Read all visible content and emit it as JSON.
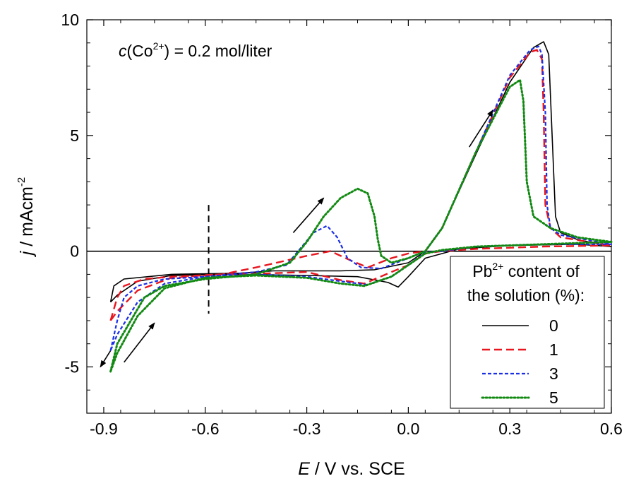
{
  "chart_data": {
    "type": "line",
    "title": "",
    "annotation": {
      "italic": "c",
      "prefix": "(Co",
      "superscript": "2+",
      "suffix": ") = 0.2 mol/liter"
    },
    "xlabel": {
      "italic": "E",
      "rest": " / V vs. SCE"
    },
    "ylabel": {
      "italic": "j",
      "rest": " / mAcm",
      "superscript": "-2"
    },
    "xlim": [
      -0.95,
      0.6
    ],
    "ylim": [
      -7,
      10
    ],
    "xticks": [
      -0.9,
      -0.6,
      -0.3,
      0.0,
      0.3,
      0.6
    ],
    "xtick_labels": [
      "-0.9",
      "-0.6",
      "-0.3",
      "0.0",
      "0.3",
      "0.6"
    ],
    "yticks": [
      -5,
      0,
      5,
      10
    ],
    "ytick_labels": [
      "-5",
      "0",
      "5",
      "10"
    ],
    "zero_line": true,
    "vertical_marker_x": -0.59,
    "legend": {
      "position": "bottom-right",
      "title_line1_prefix": "Pb",
      "title_line1_superscript": "2+",
      "title_line1_suffix": " content of",
      "title_line2": "the solution (%):"
    },
    "arrows": [
      {
        "from": [
          -0.88,
          -4.3
        ],
        "to": [
          -0.91,
          -5.0
        ]
      },
      {
        "from": [
          -0.84,
          -4.8
        ],
        "to": [
          -0.75,
          -3.1
        ]
      },
      {
        "from": [
          -0.34,
          0.8
        ],
        "to": [
          -0.25,
          2.3
        ]
      },
      {
        "from": [
          0.18,
          4.5
        ],
        "to": [
          0.25,
          6.1
        ]
      }
    ],
    "series": [
      {
        "name": "0",
        "color": "#000000",
        "dash": "solid",
        "points": [
          [
            -0.88,
            -2.2
          ],
          [
            -0.87,
            -1.5
          ],
          [
            -0.84,
            -1.2
          ],
          [
            -0.7,
            -1.0
          ],
          [
            -0.5,
            -0.95
          ],
          [
            -0.4,
            -0.85
          ],
          [
            -0.3,
            -0.85
          ],
          [
            -0.2,
            -0.85
          ],
          [
            -0.1,
            -0.8
          ],
          [
            0.0,
            -0.5
          ],
          [
            0.05,
            0.0
          ],
          [
            0.1,
            1.0
          ],
          [
            0.2,
            4.2
          ],
          [
            0.3,
            7.3
          ],
          [
            0.37,
            8.8
          ],
          [
            0.4,
            9.05
          ],
          [
            0.415,
            8.5
          ],
          [
            0.425,
            5.0
          ],
          [
            0.435,
            1.5
          ],
          [
            0.45,
            0.8
          ],
          [
            0.5,
            0.5
          ],
          [
            0.6,
            0.2
          ],
          [
            0.5,
            0.3
          ],
          [
            0.3,
            0.25
          ],
          [
            0.15,
            0.1
          ],
          [
            0.05,
            -0.3
          ],
          [
            0.0,
            -1.1
          ],
          [
            -0.03,
            -1.55
          ],
          [
            -0.06,
            -1.35
          ],
          [
            -0.15,
            -1.1
          ],
          [
            -0.3,
            -1.05
          ],
          [
            -0.5,
            -1.0
          ],
          [
            -0.7,
            -1.05
          ],
          [
            -0.8,
            -1.3
          ],
          [
            -0.86,
            -1.9
          ],
          [
            -0.88,
            -2.2
          ]
        ]
      },
      {
        "name": "1",
        "color": "#e8161f",
        "dash": "long-dash",
        "points": [
          [
            -0.88,
            -3.0
          ],
          [
            -0.86,
            -2.0
          ],
          [
            -0.84,
            -1.5
          ],
          [
            -0.78,
            -1.2
          ],
          [
            -0.7,
            -1.1
          ],
          [
            -0.55,
            -1.0
          ],
          [
            -0.45,
            -0.7
          ],
          [
            -0.3,
            -0.2
          ],
          [
            -0.23,
            0.0
          ],
          [
            -0.17,
            -0.4
          ],
          [
            -0.12,
            -0.7
          ],
          [
            -0.05,
            -0.3
          ],
          [
            0.0,
            -0.1
          ],
          [
            0.05,
            0.0
          ],
          [
            0.1,
            1.0
          ],
          [
            0.2,
            4.3
          ],
          [
            0.3,
            7.5
          ],
          [
            0.36,
            8.6
          ],
          [
            0.38,
            8.7
          ],
          [
            0.395,
            8.3
          ],
          [
            0.4,
            6.0
          ],
          [
            0.405,
            2.0
          ],
          [
            0.42,
            1.0
          ],
          [
            0.45,
            0.6
          ],
          [
            0.6,
            0.25
          ],
          [
            0.4,
            0.2
          ],
          [
            0.2,
            0.1
          ],
          [
            0.1,
            0.0
          ],
          [
            0.05,
            -0.1
          ],
          [
            0.0,
            -0.6
          ],
          [
            -0.05,
            -0.9
          ],
          [
            -0.13,
            -1.4
          ],
          [
            -0.2,
            -1.25
          ],
          [
            -0.3,
            -0.9
          ],
          [
            -0.4,
            -0.95
          ],
          [
            -0.55,
            -1.0
          ],
          [
            -0.7,
            -1.15
          ],
          [
            -0.8,
            -1.7
          ],
          [
            -0.86,
            -2.6
          ],
          [
            -0.88,
            -3.0
          ]
        ]
      },
      {
        "name": "3",
        "color": "#1a2ee6",
        "dash": "short-dash",
        "points": [
          [
            -0.88,
            -4.3
          ],
          [
            -0.86,
            -3.0
          ],
          [
            -0.84,
            -2.0
          ],
          [
            -0.8,
            -1.5
          ],
          [
            -0.72,
            -1.2
          ],
          [
            -0.6,
            -1.1
          ],
          [
            -0.45,
            -0.9
          ],
          [
            -0.36,
            -0.6
          ],
          [
            -0.32,
            0.1
          ],
          [
            -0.28,
            0.8
          ],
          [
            -0.24,
            1.1
          ],
          [
            -0.21,
            0.6
          ],
          [
            -0.18,
            -0.3
          ],
          [
            -0.14,
            -0.7
          ],
          [
            -0.08,
            -0.75
          ],
          [
            0.0,
            -0.3
          ],
          [
            0.05,
            0.0
          ],
          [
            0.1,
            1.0
          ],
          [
            0.2,
            4.3
          ],
          [
            0.3,
            7.6
          ],
          [
            0.36,
            8.7
          ],
          [
            0.385,
            8.85
          ],
          [
            0.395,
            8.5
          ],
          [
            0.405,
            6.0
          ],
          [
            0.41,
            2.0
          ],
          [
            0.42,
            1.0
          ],
          [
            0.45,
            0.7
          ],
          [
            0.6,
            0.3
          ],
          [
            0.4,
            0.3
          ],
          [
            0.2,
            0.2
          ],
          [
            0.1,
            0.0
          ],
          [
            0.05,
            -0.05
          ],
          [
            0.0,
            -0.6
          ],
          [
            -0.05,
            -1.1
          ],
          [
            -0.12,
            -1.45
          ],
          [
            -0.2,
            -1.3
          ],
          [
            -0.3,
            -1.1
          ],
          [
            -0.45,
            -1.0
          ],
          [
            -0.6,
            -1.1
          ],
          [
            -0.72,
            -1.4
          ],
          [
            -0.8,
            -2.2
          ],
          [
            -0.86,
            -3.6
          ],
          [
            -0.88,
            -4.3
          ]
        ]
      },
      {
        "name": "5",
        "color": "#128a12",
        "dash": "dotted",
        "points": [
          [
            -0.88,
            -5.2
          ],
          [
            -0.86,
            -4.0
          ],
          [
            -0.82,
            -3.0
          ],
          [
            -0.78,
            -2.0
          ],
          [
            -0.72,
            -1.5
          ],
          [
            -0.6,
            -1.2
          ],
          [
            -0.45,
            -1.0
          ],
          [
            -0.35,
            -0.5
          ],
          [
            -0.3,
            0.4
          ],
          [
            -0.25,
            1.5
          ],
          [
            -0.2,
            2.3
          ],
          [
            -0.15,
            2.7
          ],
          [
            -0.12,
            2.5
          ],
          [
            -0.1,
            1.5
          ],
          [
            -0.09,
            0.5
          ],
          [
            -0.08,
            -0.2
          ],
          [
            -0.05,
            -0.5
          ],
          [
            0.0,
            -0.3
          ],
          [
            0.05,
            0.0
          ],
          [
            0.1,
            1.0
          ],
          [
            0.2,
            4.3
          ],
          [
            0.3,
            7.1
          ],
          [
            0.33,
            7.4
          ],
          [
            0.34,
            6.5
          ],
          [
            0.35,
            3.0
          ],
          [
            0.37,
            1.5
          ],
          [
            0.42,
            1.0
          ],
          [
            0.5,
            0.6
          ],
          [
            0.6,
            0.4
          ],
          [
            0.4,
            0.3
          ],
          [
            0.2,
            0.2
          ],
          [
            0.1,
            0.05
          ],
          [
            0.05,
            -0.1
          ],
          [
            0.0,
            -0.6
          ],
          [
            -0.05,
            -1.1
          ],
          [
            -0.13,
            -1.5
          ],
          [
            -0.2,
            -1.4
          ],
          [
            -0.3,
            -1.15
          ],
          [
            -0.45,
            -1.05
          ],
          [
            -0.6,
            -1.15
          ],
          [
            -0.72,
            -1.6
          ],
          [
            -0.8,
            -2.8
          ],
          [
            -0.86,
            -4.4
          ],
          [
            -0.88,
            -5.2
          ]
        ]
      }
    ]
  }
}
